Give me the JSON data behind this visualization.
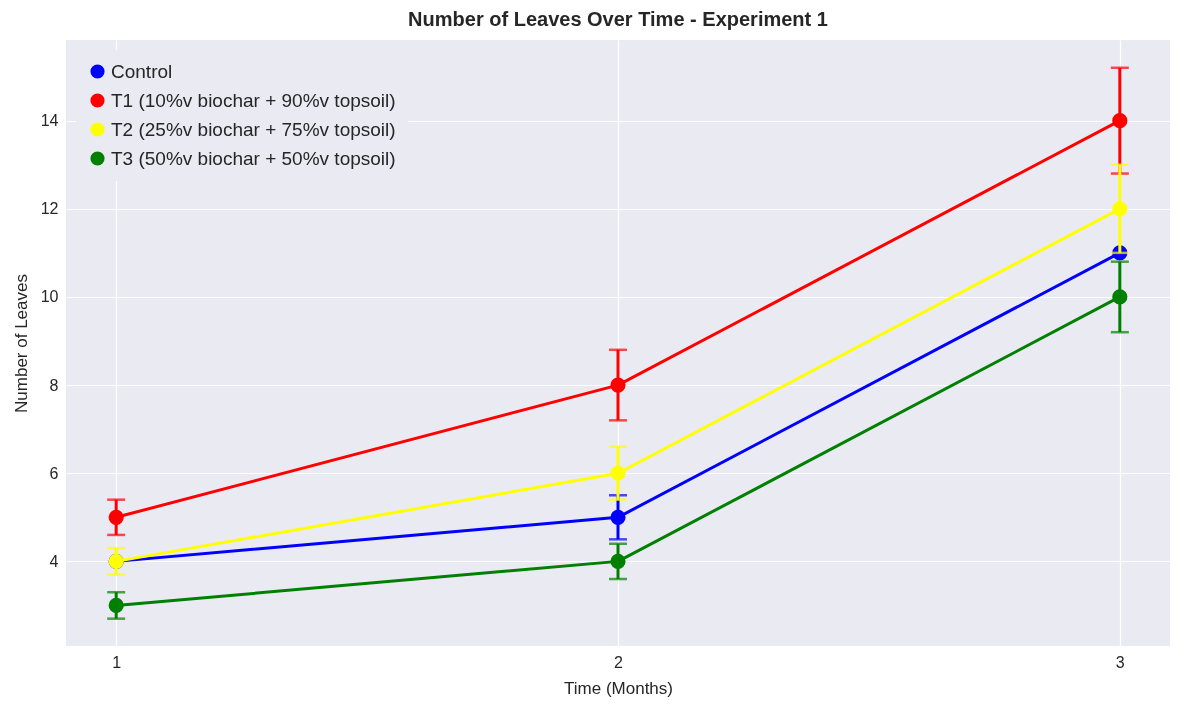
{
  "chart_data": {
    "type": "line",
    "title": "Number of Leaves Over Time - Experiment 1",
    "xlabel": "Time (Months)",
    "ylabel": "Number of Leaves",
    "x": [
      1,
      2,
      3
    ],
    "series": [
      {
        "name": "Control",
        "color": "#0000ff",
        "values": [
          4,
          5,
          11
        ],
        "errors": [
          null,
          0.5,
          null
        ]
      },
      {
        "name": "T1 (10%v biochar + 90%v topsoil)",
        "color": "#ff0000",
        "values": [
          5,
          8,
          14
        ],
        "errors": [
          0.4,
          0.8,
          1.2
        ]
      },
      {
        "name": "T2 (25%v biochar + 75%v topsoil)",
        "color": "#ffff00",
        "values": [
          4,
          6,
          12
        ],
        "errors": [
          0.3,
          0.6,
          1.0
        ]
      },
      {
        "name": "T3 (50%v biochar + 50%v topsoil)",
        "color": "#008000",
        "values": [
          3,
          4,
          10
        ],
        "errors": [
          0.3,
          0.4,
          0.8
        ]
      }
    ],
    "xlim": [
      0.9,
      3.1
    ],
    "xticks": [
      1,
      2,
      3
    ],
    "ylim": [
      2.08,
      15.83
    ],
    "yticks": [
      4,
      6,
      8,
      10,
      12,
      14
    ],
    "grid": true,
    "legend": "top left",
    "marker": "circle",
    "line_style": "solid"
  }
}
